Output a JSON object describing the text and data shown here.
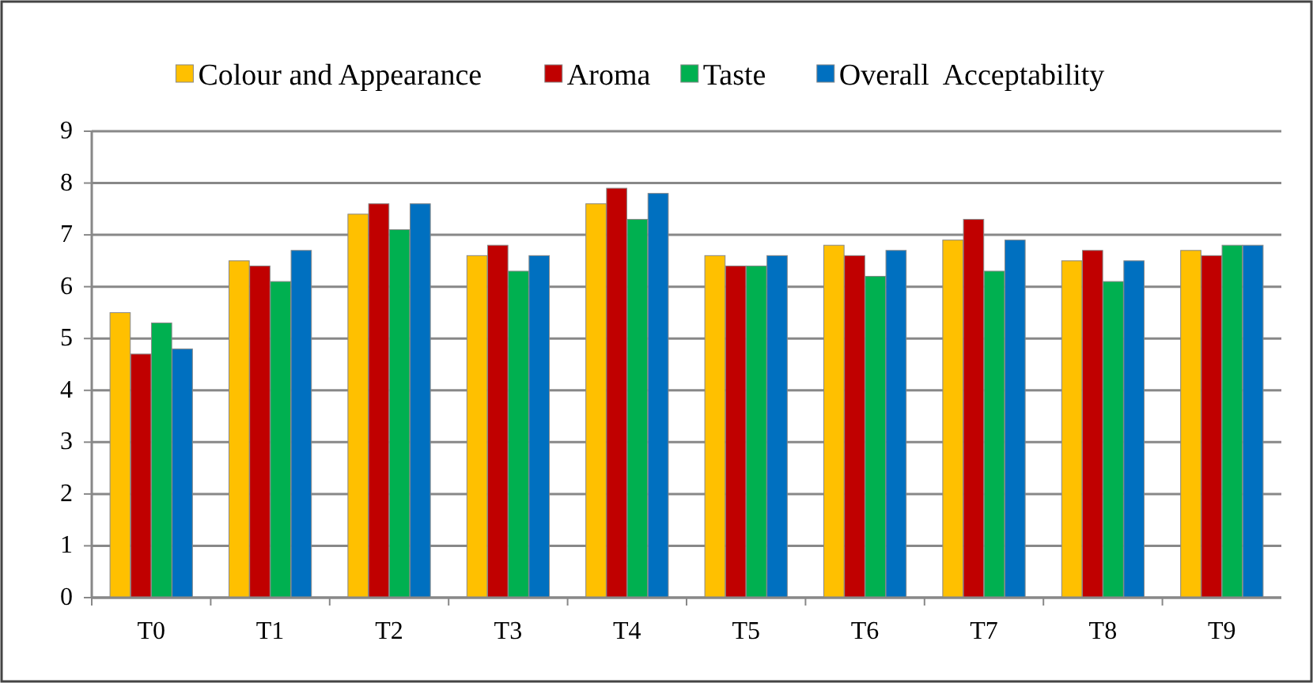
{
  "chart_data": {
    "type": "bar",
    "categories": [
      "T0",
      "T1",
      "T2",
      "T3",
      "T4",
      "T5",
      "T6",
      "T7",
      "T8",
      "T9"
    ],
    "series": [
      {
        "name": "Colour and Appearance",
        "color": "#ffc000",
        "values": [
          5.5,
          6.5,
          7.4,
          6.6,
          7.6,
          6.6,
          6.8,
          6.9,
          6.5,
          6.7
        ]
      },
      {
        "name": "Aroma",
        "color": "#c00000",
        "values": [
          4.7,
          6.4,
          7.6,
          6.8,
          7.9,
          6.4,
          6.6,
          7.3,
          6.7,
          6.6
        ]
      },
      {
        "name": "Taste",
        "color": "#00b050",
        "values": [
          5.3,
          6.1,
          7.1,
          6.3,
          7.3,
          6.4,
          6.2,
          6.3,
          6.1,
          6.8
        ]
      },
      {
        "name": "Overall  Acceptability",
        "color": "#0070c0",
        "values": [
          4.8,
          6.7,
          7.6,
          6.6,
          7.8,
          6.6,
          6.7,
          6.9,
          6.5,
          6.8
        ]
      }
    ],
    "ylim": [
      0,
      9
    ],
    "yticks": [
      0,
      1,
      2,
      3,
      4,
      5,
      6,
      7,
      8,
      9
    ],
    "grid": "y",
    "legend": "top"
  }
}
